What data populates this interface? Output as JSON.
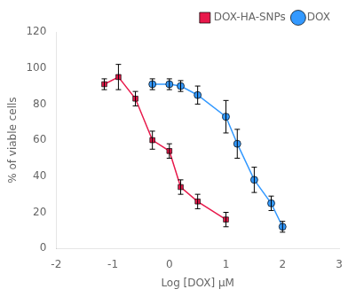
{
  "chart_data": {
    "type": "line",
    "xlabel": "Log [DOX] μM",
    "ylabel": "% of viable cells",
    "xlim": [
      -2,
      3
    ],
    "ylim": [
      0,
      120
    ],
    "xticks": [
      -2,
      -1,
      0,
      1,
      2,
      3
    ],
    "yticks": [
      0,
      20,
      40,
      60,
      80,
      100,
      120
    ],
    "grid": false,
    "legend": "upper right",
    "series": [
      {
        "name": "DOX-HA-SNPs",
        "color": "#e8194b",
        "marker": "square",
        "x": [
          -1.15,
          -0.9,
          -0.6,
          -0.3,
          0.0,
          0.2,
          0.5,
          1.0
        ],
        "values": [
          91,
          95,
          83,
          60,
          54,
          34,
          26,
          16
        ],
        "yerr": [
          3,
          7,
          4,
          5,
          4,
          4,
          4,
          4
        ]
      },
      {
        "name": "DOX",
        "color": "#3399ff",
        "marker": "circle",
        "x": [
          -0.3,
          0.0,
          0.2,
          0.5,
          1.0,
          1.2,
          1.5,
          1.8,
          2.0
        ],
        "values": [
          91,
          91,
          90,
          85,
          73,
          58,
          38,
          25,
          12
        ],
        "yerr": [
          3,
          3,
          3,
          5,
          9,
          8,
          7,
          4,
          3
        ]
      }
    ]
  }
}
